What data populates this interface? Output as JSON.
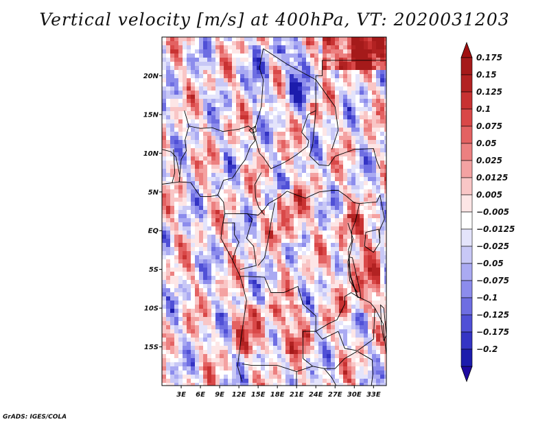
{
  "title": "Vertical velocity [m/s] at 400hPa, VT: 2020031203",
  "credit": "GrADS: IGES/COLA",
  "map": {
    "lon_range": [
      0,
      35
    ],
    "lat_range": [
      -20,
      25
    ],
    "lat_ticks": [
      {
        "value": 20,
        "label": "20N"
      },
      {
        "value": 15,
        "label": "15N"
      },
      {
        "value": 10,
        "label": "10N"
      },
      {
        "value": 5,
        "label": "5N"
      },
      {
        "value": 0,
        "label": "EQ"
      },
      {
        "value": -5,
        "label": "5S"
      },
      {
        "value": -10,
        "label": "10S"
      },
      {
        "value": -15,
        "label": "15S"
      }
    ],
    "lon_ticks": [
      {
        "value": 3,
        "label": "3E"
      },
      {
        "value": 6,
        "label": "6E"
      },
      {
        "value": 9,
        "label": "9E"
      },
      {
        "value": 12,
        "label": "12E"
      },
      {
        "value": 15,
        "label": "15E"
      },
      {
        "value": 18,
        "label": "18E"
      },
      {
        "value": 21,
        "label": "21E"
      },
      {
        "value": 24,
        "label": "24E"
      },
      {
        "value": 27,
        "label": "27E"
      },
      {
        "value": 30,
        "label": "30E"
      },
      {
        "value": 33,
        "label": "33E"
      }
    ]
  },
  "colorbar": {
    "levels": [
      {
        "label": "0.175",
        "color": "#a51a1a"
      },
      {
        "label": "0.15",
        "color": "#b22222"
      },
      {
        "label": "0.125",
        "color": "#c83232"
      },
      {
        "label": "0.1",
        "color": "#d94848"
      },
      {
        "label": "0.075",
        "color": "#e36262"
      },
      {
        "label": "0.05",
        "color": "#ec8080"
      },
      {
        "label": "0.025",
        "color": "#f4a2a2"
      },
      {
        "label": "0.0125",
        "color": "#f9c6c6"
      },
      {
        "label": "0.005",
        "color": "#fde6e6"
      },
      {
        "label": "−0.005",
        "color": "#ffffff"
      },
      {
        "label": "−0.0125",
        "color": "#e4e4fb"
      },
      {
        "label": "−0.025",
        "color": "#c8c8f6"
      },
      {
        "label": "−0.05",
        "color": "#aaaaf2"
      },
      {
        "label": "−0.075",
        "color": "#8c8cec"
      },
      {
        "label": "−0.1",
        "color": "#6e6ee2"
      },
      {
        "label": "−0.125",
        "color": "#5050d6"
      },
      {
        "label": "−0.175",
        "color": "#3434c4"
      },
      {
        "label": "−0.2",
        "color": "#1c1cac"
      }
    ],
    "top_arrow_color": "#a01010",
    "bottom_arrow_color": "#1e0aa0"
  }
}
